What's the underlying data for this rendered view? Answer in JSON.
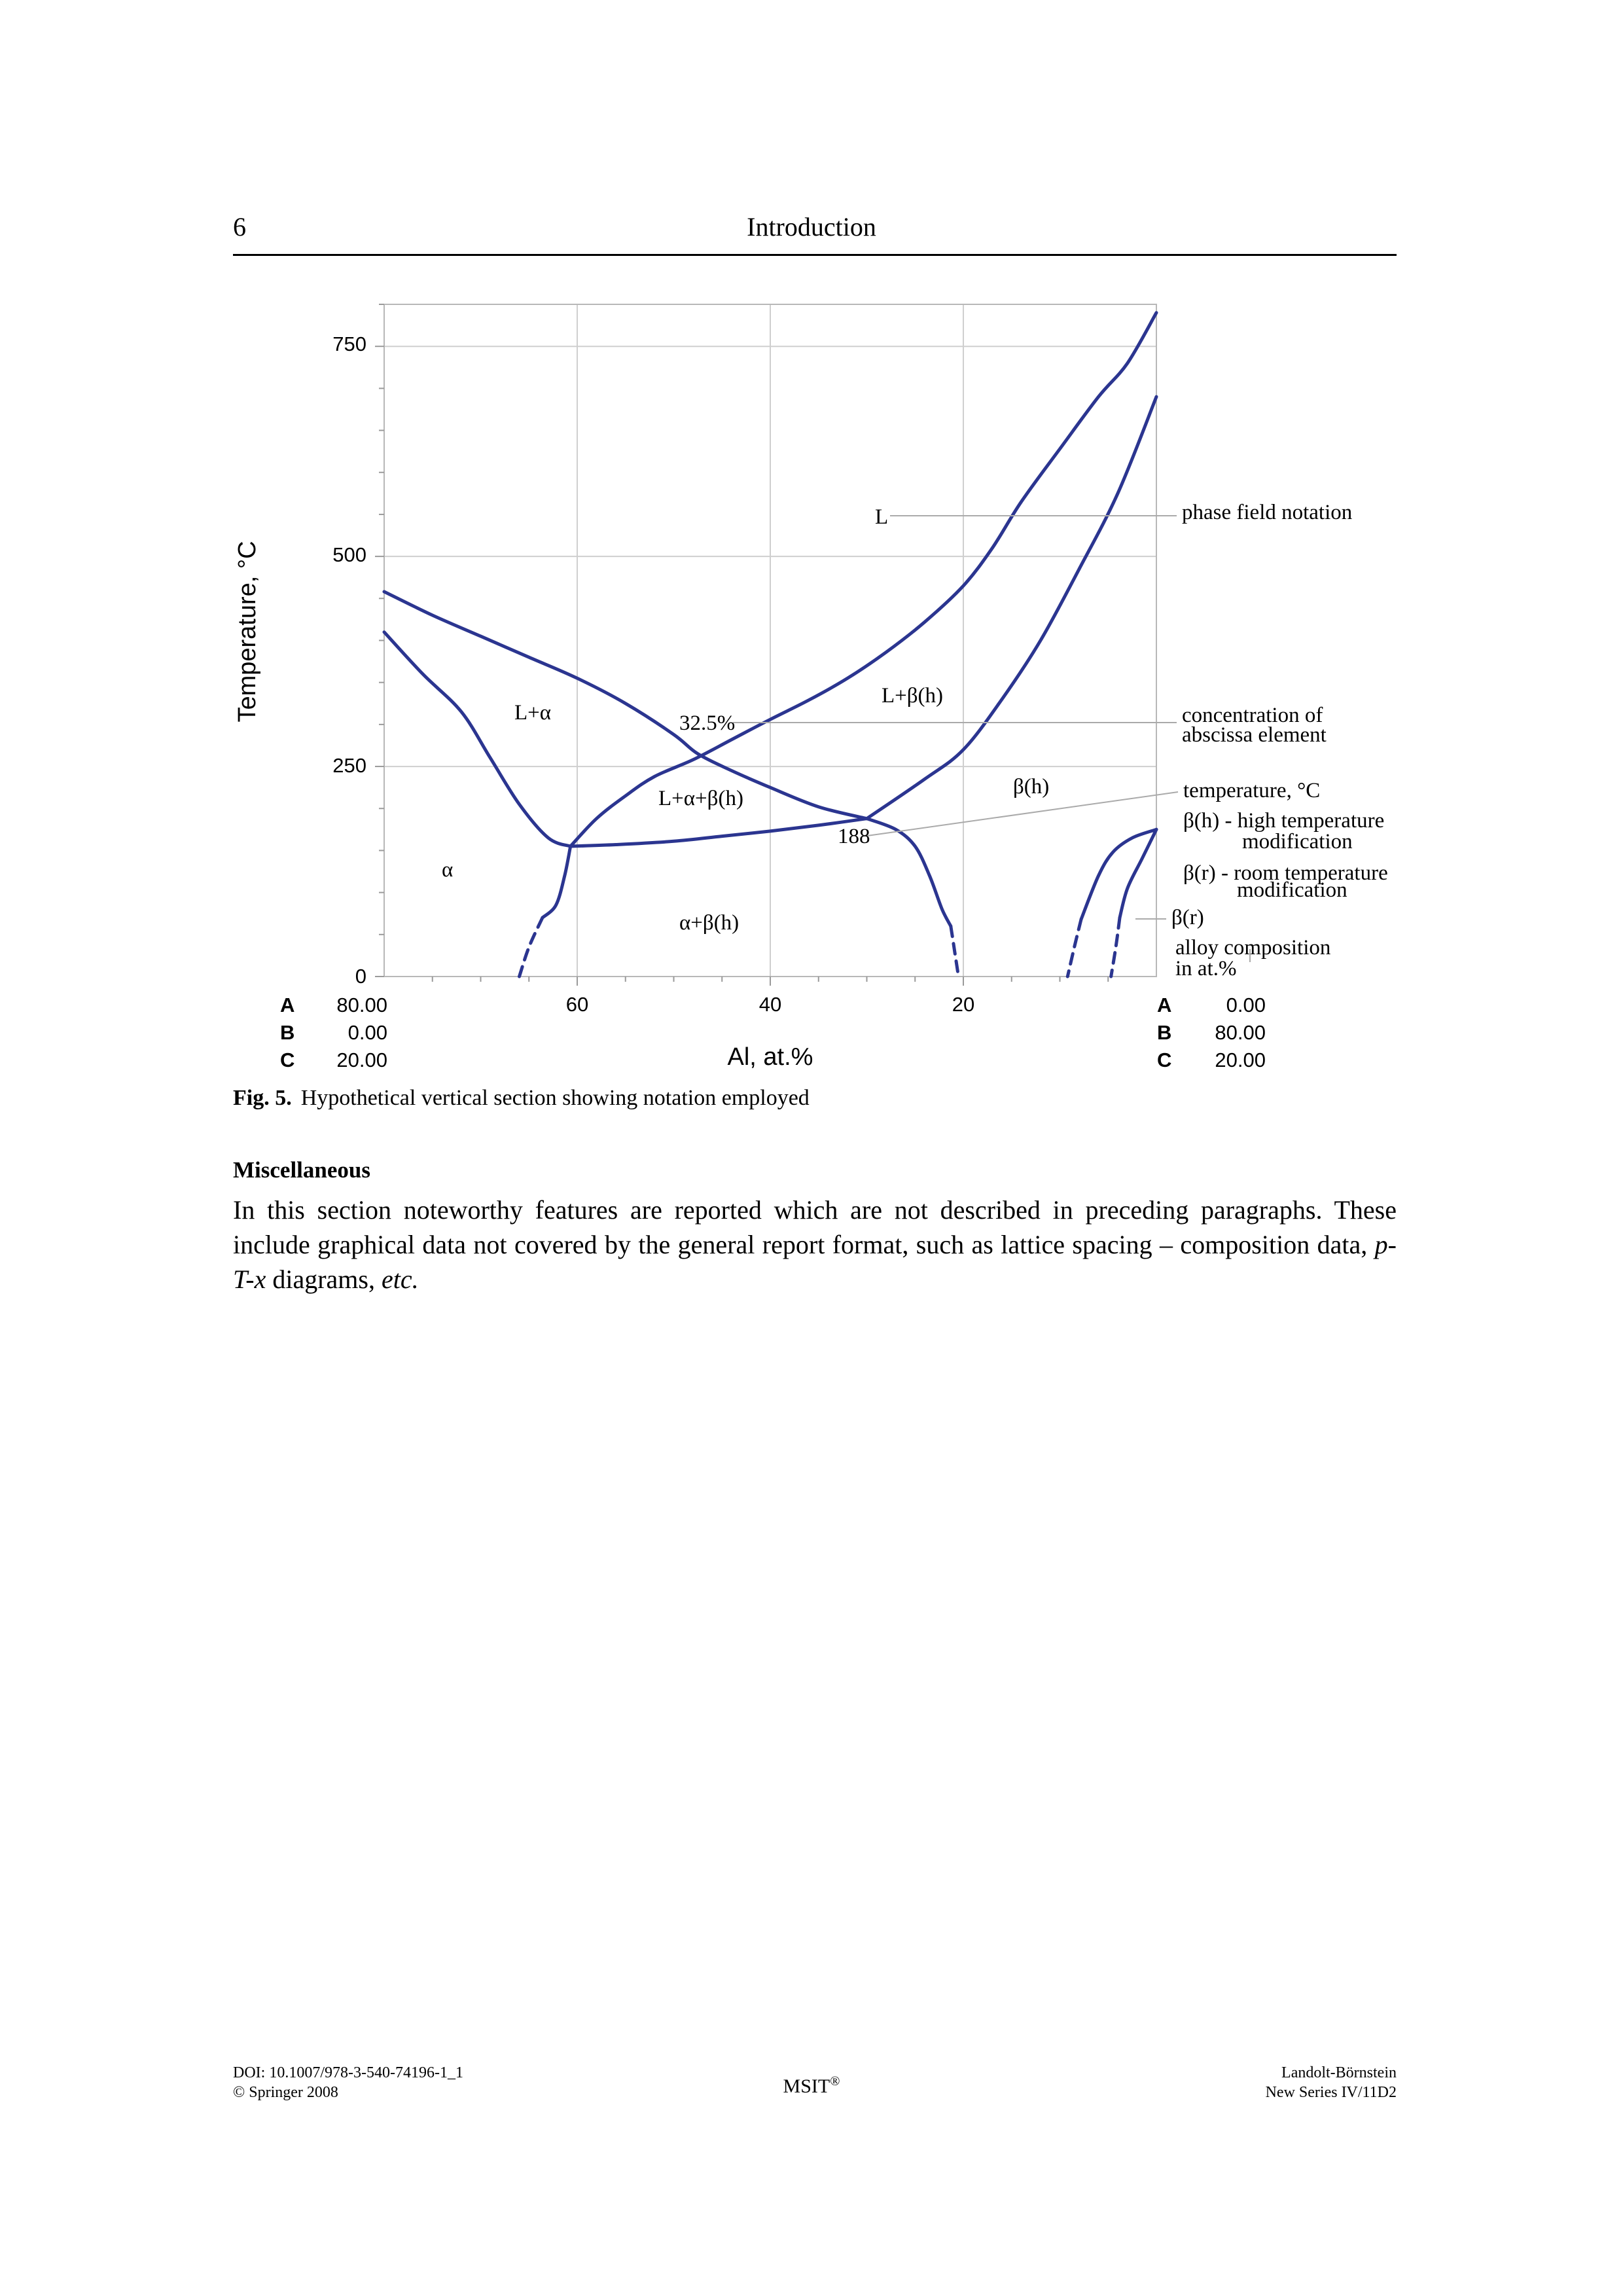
{
  "header": {
    "page_number": "6",
    "title": "Introduction"
  },
  "figure": {
    "axes": {
      "ylabel": "Temperature, °C",
      "xlabel": "Al, at.%",
      "yticks": [
        "0",
        "250",
        "500",
        "750"
      ],
      "xticks": [
        "60",
        "40",
        "20"
      ],
      "x_range": [
        80,
        0
      ],
      "y_range": [
        0,
        800
      ]
    },
    "composition_left": {
      "rows": [
        {
          "label": "A",
          "value": "80.00"
        },
        {
          "label": "B",
          "value": "0.00"
        },
        {
          "label": "C",
          "value": "20.00"
        }
      ]
    },
    "composition_right": {
      "rows": [
        {
          "label": "A",
          "value": "0.00"
        },
        {
          "label": "B",
          "value": "80.00"
        },
        {
          "label": "C",
          "value": "20.00"
        }
      ]
    },
    "phase_labels": {
      "L": "L",
      "L_alpha": "L+α",
      "L_beta_h": "L+β(h)",
      "L_alpha_beta_h": "L+α+β(h)",
      "beta_h": "β(h)",
      "alpha": "α",
      "alpha_beta_h": "α+β(h)",
      "conc_value": "32.5%",
      "temp_value": "188"
    },
    "legend": {
      "phase_field": "phase field notation",
      "concentration_1": "concentration of",
      "concentration_2": "abscissa element",
      "temperature": "temperature, °C",
      "beta_h_1": "β(h) - high temperature",
      "beta_h_2": "modification",
      "beta_r_1": "β(r) - room temperature",
      "beta_r_2": "modification",
      "beta_r_symbol": "β(r)",
      "alloy_1": "alloy composition",
      "alloy_2": "in at.%"
    },
    "line_color": "#2b3590",
    "chart_data": {
      "type": "line",
      "xlabel": "Al, at.%",
      "ylabel": "Temperature, °C",
      "xlim": [
        80,
        0
      ],
      "ylim": [
        0,
        800
      ],
      "series": [
        {
          "x": [
            80,
            75,
            70,
            65,
            60,
            55,
            50,
            47.5,
            44,
            40,
            35,
            30
          ],
          "y": [
            458,
            430,
            405,
            380,
            355,
            325,
            288,
            265,
            245,
            225,
            202,
            188
          ]
        },
        {
          "x": [
            80,
            76,
            72,
            69,
            66,
            63,
            60.7
          ],
          "y": [
            410,
            360,
            315,
            260,
            205,
            165,
            155
          ]
        },
        {
          "x": [
            60.7,
            58,
            55,
            52,
            48,
            44,
            40,
            36,
            32,
            28,
            24,
            20,
            17,
            14,
            10,
            6,
            3,
            0
          ],
          "y": [
            155,
            188,
            215,
            238,
            258,
            282,
            306,
            329,
            355,
            386,
            422,
            465,
            510,
            565,
            628,
            690,
            730,
            790
          ]
        },
        {
          "x": [
            60.7,
            56,
            50,
            45,
            40,
            35,
            30
          ],
          "y": [
            155,
            157,
            161,
            167,
            173,
            180,
            188
          ]
        },
        {
          "x": [
            30,
            24,
            20,
            16,
            12,
            8,
            4,
            0
          ],
          "y": [
            188,
            235,
            270,
            330,
            400,
            485,
            575,
            690
          ]
        },
        {
          "x": [
            30,
            27,
            25,
            23.5,
            22.2,
            21.3
          ],
          "y": [
            188,
            175,
            155,
            120,
            80,
            60
          ]
        },
        {
          "x": [
            60.7,
            61.3,
            62.2,
            63.6
          ],
          "y": [
            155,
            120,
            85,
            70
          ]
        },
        {
          "x": [
            63.6,
            65,
            66
          ],
          "y": [
            70,
            35,
            0
          ],
          "dashed": true
        },
        {
          "x": [
            21.3,
            20.9,
            20.5
          ],
          "y": [
            60,
            30,
            0
          ],
          "dashed": true
        },
        {
          "x": [
            0,
            2.5,
            4.5,
            6,
            7.8
          ],
          "y": [
            175,
            165,
            148,
            120,
            68
          ]
        },
        {
          "x": [
            7.8,
            8.5,
            9.2
          ],
          "y": [
            68,
            35,
            0
          ],
          "dashed": true
        },
        {
          "x": [
            0,
            1.5,
            3,
            3.8
          ],
          "y": [
            175,
            140,
            105,
            70
          ]
        },
        {
          "x": [
            3.8,
            4.2,
            4.7
          ],
          "y": [
            70,
            35,
            0
          ],
          "dashed": true
        }
      ],
      "annotations": [
        {
          "text": "L",
          "x": 28.5,
          "y": 548
        },
        {
          "text": "L+α",
          "x": 65.5,
          "y": 314
        },
        {
          "text": "32.5%",
          "x": 43.5,
          "y": 300
        },
        {
          "text": "L+β(h)",
          "x": 27.5,
          "y": 330
        },
        {
          "text": "L+α+β(h)",
          "x": 46.5,
          "y": 210
        },
        {
          "text": "β(h)",
          "x": 13,
          "y": 222
        },
        {
          "text": "188",
          "x": 31.5,
          "y": 165
        },
        {
          "text": "α",
          "x": 73,
          "y": 128
        },
        {
          "text": "α+β(h)",
          "x": 45,
          "y": 62
        }
      ]
    }
  },
  "caption": {
    "label": "Fig. 5.",
    "text": "Hypothetical vertical section showing notation employed"
  },
  "section": {
    "heading": "Miscellaneous",
    "para_1": "In this section noteworthy features are reported which are not described in preceding paragraphs. These include graphical data not covered by the general report format, such as lattice spacing – composition data, ",
    "para_pTx": "p-T-x",
    "para_2": " diagrams, ",
    "para_etc": "etc."
  },
  "footer": {
    "doi": "DOI: 10.1007/978-3-540-74196-1_1",
    "copyright": "© Springer 2008",
    "center": "MSIT",
    "center_mark": "®",
    "right_1": "Landolt-Börnstein",
    "right_2": "New Series IV/11D2"
  }
}
